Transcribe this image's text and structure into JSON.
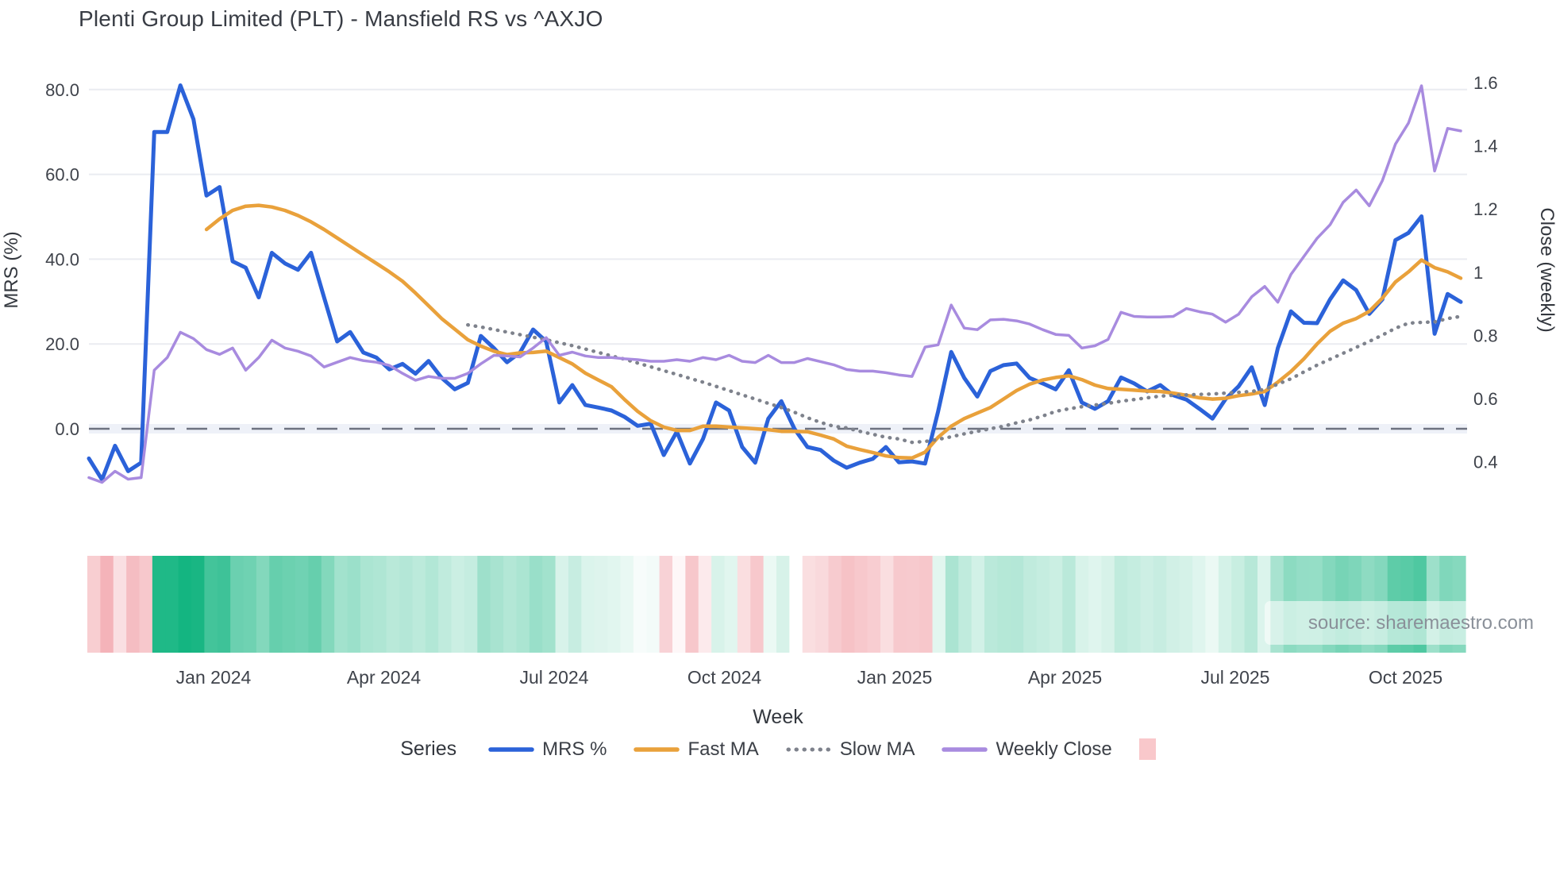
{
  "page": {
    "title": "Plenti Group Limited (PLT) - Mansfield RS vs ^AXJO",
    "watermark": "source: sharemaestro.com"
  },
  "chart_data": {
    "type": "line",
    "title": "Plenti Group Limited (PLT) - Mansfield RS vs ^AXJO",
    "x_axis": {
      "label": "Week",
      "tick_labels": [
        "Jan 2024",
        "Apr 2024",
        "Jul 2024",
        "Oct 2024",
        "Jan 2025",
        "Apr 2025",
        "Jul 2025",
        "Oct 2025"
      ]
    },
    "y_left": {
      "label": "MRS (%)",
      "tick_labels": [
        "80.0",
        "60.0",
        "40.0",
        "20.0",
        "0.0"
      ],
      "tick_values": [
        80,
        60,
        40,
        20,
        0
      ],
      "range": [
        -16,
        86
      ],
      "zero_line": true
    },
    "y_right": {
      "label": "Close (weekly)",
      "tick_labels": [
        "1.6",
        "1.4",
        "1.2",
        "1",
        "0.8",
        "0.6",
        "0.4"
      ],
      "tick_values": [
        1.6,
        1.4,
        1.2,
        1,
        0.8,
        0.6,
        0.4
      ],
      "range": [
        0.3,
        1.66
      ]
    },
    "legend": {
      "title": "Series",
      "heatmap_swatch_color": "#f9c8cb"
    },
    "series": [
      {
        "name": "MRS %",
        "axis": "left",
        "style": "solid",
        "color": "#2b62d9",
        "width": 5,
        "values": [
          -7,
          -12,
          -4,
          -10,
          -8,
          70,
          70,
          81,
          73,
          55,
          57,
          39.5,
          38,
          31,
          41.5,
          39,
          37.5,
          41.5,
          31,
          20.6,
          22.8,
          18,
          16.8,
          14,
          15.3,
          13,
          16,
          12,
          9.3,
          10.8,
          21.9,
          19,
          15.7,
          18,
          23.4,
          20.6,
          6.2,
          10.3,
          5.6,
          5,
          4.3,
          2.8,
          0.7,
          1.2,
          -6.2,
          -0.7,
          -8.2,
          -2.4,
          6.2,
          4.3,
          -4.3,
          -8,
          2.4,
          6.5,
          0,
          -4.3,
          -5,
          -7.5,
          -9.2,
          -8,
          -7.1,
          -4.3,
          -7.9,
          -7.7,
          -8.2,
          4.1,
          18.1,
          12,
          7.6,
          13.6,
          15,
          15.4,
          12,
          10.7,
          9.3,
          13.8,
          6.2,
          4.7,
          6.5,
          12.1,
          10.7,
          8.8,
          10.3,
          7.9,
          6.9,
          4.7,
          2.4,
          7,
          10,
          14.5,
          5.6,
          19,
          27.7,
          25,
          24.9,
          30.5,
          35,
          32.7,
          27.1,
          30.5,
          44.5,
          46.2,
          50.1,
          22.4,
          31.8,
          29.9
        ]
      },
      {
        "name": "Fast MA",
        "axis": "left",
        "style": "solid",
        "color": "#e9a13b",
        "width": 4.5,
        "values": [
          null,
          null,
          null,
          null,
          null,
          null,
          null,
          null,
          null,
          47,
          49.5,
          51.5,
          52.5,
          52.7,
          52.3,
          51.5,
          50.3,
          48.8,
          47,
          45,
          43,
          41,
          39,
          37,
          34.8,
          32,
          29,
          26,
          23.5,
          21,
          19.5,
          18.3,
          17.5,
          17.9,
          18,
          18.3,
          16.8,
          15.3,
          13.1,
          11.5,
          9.9,
          6.9,
          4.1,
          1.9,
          0.4,
          -0.4,
          -0.4,
          0.6,
          0.6,
          0.4,
          0.2,
          0,
          -0.2,
          -0.6,
          -0.6,
          -0.7,
          -1.5,
          -2.4,
          -4.1,
          -4.9,
          -5.6,
          -6.4,
          -6.8,
          -6.9,
          -5.5,
          -2,
          0.6,
          2.4,
          3.7,
          5,
          7,
          9,
          10.5,
          11.5,
          12.1,
          12.5,
          11.6,
          10.3,
          9.5,
          9.3,
          9.1,
          8.9,
          8.8,
          8.4,
          7.9,
          7.3,
          7,
          7.2,
          7.8,
          8.2,
          8.8,
          11,
          13.5,
          16.5,
          20,
          23,
          24.9,
          26,
          27.7,
          30.8,
          34.6,
          37,
          39.8,
          38,
          37,
          35.5
        ]
      },
      {
        "name": "Slow MA",
        "axis": "left",
        "style": "dotted",
        "color": "#7e828c",
        "width": 4.5,
        "values": [
          null,
          null,
          null,
          null,
          null,
          null,
          null,
          null,
          null,
          null,
          null,
          null,
          null,
          null,
          null,
          null,
          null,
          null,
          null,
          null,
          null,
          null,
          null,
          null,
          null,
          null,
          null,
          null,
          null,
          24.5,
          24,
          23.4,
          22.8,
          22.2,
          21.6,
          21,
          20.3,
          19.6,
          18.8,
          18,
          17.2,
          16.4,
          15.5,
          14.6,
          13.7,
          12.8,
          11.9,
          11,
          10,
          9,
          8,
          7,
          6,
          5,
          3.9,
          2.6,
          1.5,
          0.6,
          0.2,
          -0.6,
          -1.3,
          -2,
          -2.4,
          -3.2,
          -3,
          -2.5,
          -1.9,
          -1.2,
          -0.6,
          0,
          0.6,
          1.4,
          2.1,
          3,
          4.1,
          4.7,
          5.2,
          5.6,
          6,
          6.5,
          6.9,
          7.3,
          7.7,
          7.9,
          8,
          8.1,
          8.2,
          8.4,
          8.6,
          8.8,
          9.3,
          10.5,
          11.8,
          13.4,
          15,
          16.4,
          17.8,
          19.2,
          20.6,
          22.1,
          23.7,
          24.9,
          25.1,
          25.2,
          26,
          26.5
        ]
      },
      {
        "name": "Weekly Close",
        "axis": "right",
        "style": "solid",
        "color": "#a88bdf",
        "width": 3.5,
        "values": [
          0.35,
          0.335,
          0.37,
          0.345,
          0.35,
          0.69,
          0.73,
          0.81,
          0.79,
          0.755,
          0.74,
          0.76,
          0.69,
          0.73,
          0.785,
          0.76,
          0.75,
          0.735,
          0.7,
          0.715,
          0.73,
          0.72,
          0.715,
          0.705,
          0.68,
          0.658,
          0.67,
          0.664,
          0.664,
          0.68,
          0.71,
          0.737,
          0.735,
          0.732,
          0.76,
          0.793,
          0.737,
          0.747,
          0.735,
          0.73,
          0.73,
          0.726,
          0.723,
          0.718,
          0.718,
          0.723,
          0.718,
          0.73,
          0.723,
          0.737,
          0.718,
          0.714,
          0.737,
          0.714,
          0.714,
          0.727,
          0.717,
          0.707,
          0.692,
          0.687,
          0.687,
          0.682,
          0.675,
          0.67,
          0.763,
          0.77,
          0.896,
          0.823,
          0.818,
          0.849,
          0.851,
          0.846,
          0.836,
          0.818,
          0.803,
          0.8,
          0.76,
          0.767,
          0.787,
          0.873,
          0.86,
          0.858,
          0.858,
          0.86,
          0.885,
          0.875,
          0.867,
          0.842,
          0.867,
          0.922,
          0.955,
          0.905,
          0.993,
          1.05,
          1.107,
          1.15,
          1.221,
          1.26,
          1.21,
          1.29,
          1.405,
          1.472,
          1.59,
          1.32,
          1.455,
          1.447
        ]
      }
    ],
    "heatmap_strip": {
      "source_series": "MRS %",
      "positive_color": "#14b581",
      "negative_color": "#f3aeb4",
      "note": "weekly color band below chart: green intensity = positive MRS, pink = negative MRS"
    }
  },
  "colors": {
    "grid": "#eaecf1",
    "zero_line": "#6d7280",
    "zero_band": "#eef1f8",
    "tick_text": "#3f434b",
    "axis_title_text": "#33373e",
    "watermark_text": "#8a9099"
  }
}
